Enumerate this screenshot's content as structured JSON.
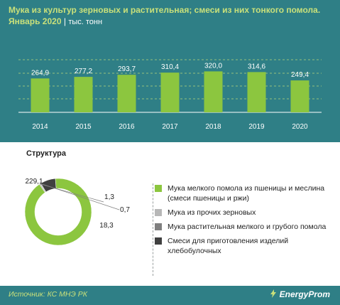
{
  "header": {
    "title": "Мука из культур зерновых и растительная; смеси из них тонкого помола. Январь 2020",
    "separator": "|",
    "unit": "тыс. тонн"
  },
  "chart_data": [
    {
      "type": "bar",
      "categories": [
        "2014",
        "2015",
        "2016",
        "2017",
        "2018",
        "2019",
        "2020"
      ],
      "values": [
        264.9,
        277.2,
        293.7,
        310.4,
        320.0,
        314.6,
        249.4
      ],
      "value_labels": [
        "264,9",
        "277,2",
        "293,7",
        "310,4",
        "320,0",
        "314,6",
        "249,4"
      ],
      "grid": true,
      "bar_color": "#8cc63f"
    },
    {
      "type": "pie",
      "title": "Структура",
      "labels": [
        "Мука мелкого помола из пшеницы и меслина (смеси пшеницы и ржи)",
        "Мука из прочих зерновых",
        "Мука растительная мелкого и грубого помола",
        "Смеси для приготовления изделий хлебобулочных"
      ],
      "values": [
        229.1,
        1.3,
        0.7,
        18.3
      ],
      "value_labels": [
        "229,1",
        "1,3",
        "0,7",
        "18,3"
      ],
      "colors": [
        "#8cc63f",
        "#b7b7b7",
        "#7f7f7f",
        "#404040"
      ],
      "legend_position": "right"
    }
  ],
  "footer": {
    "source": "Источник: КС МНЭ РК",
    "brand": "EnergyProm"
  }
}
